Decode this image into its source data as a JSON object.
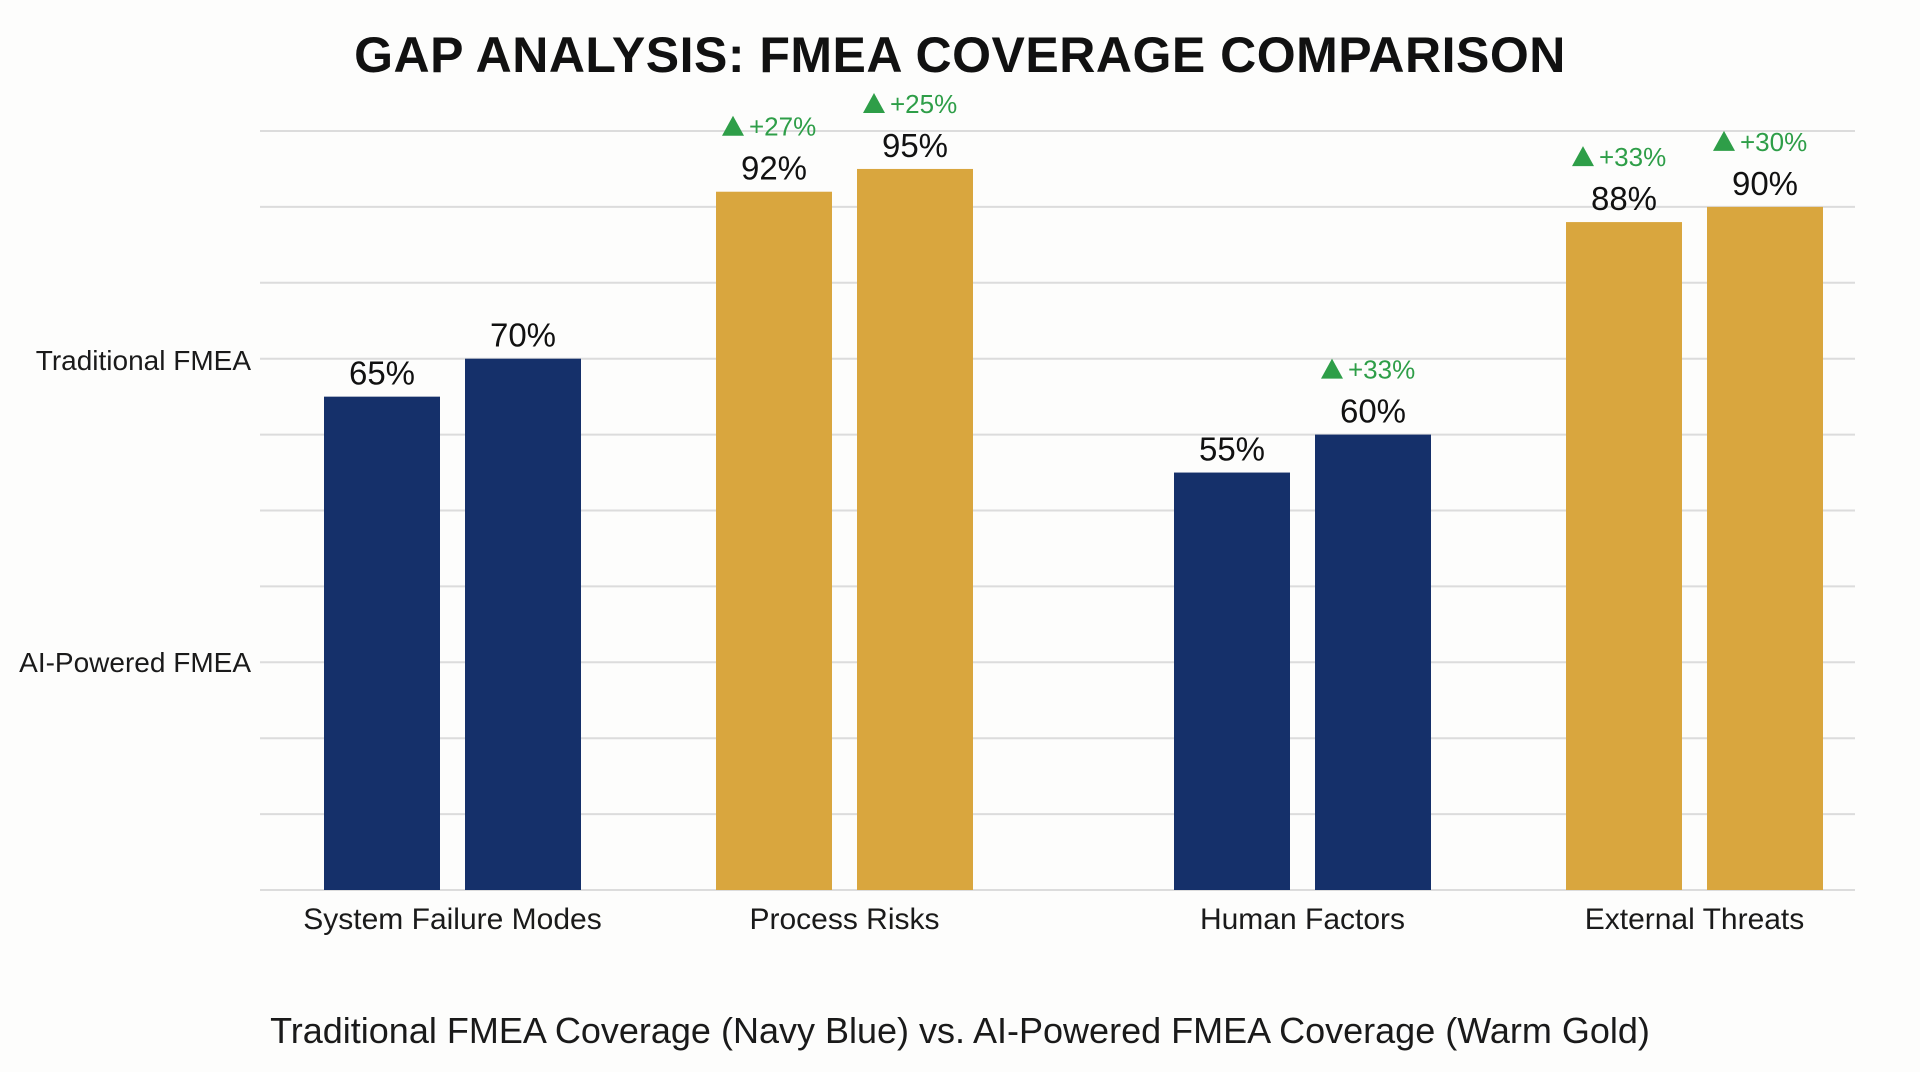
{
  "chart_data": {
    "type": "bar",
    "title": "GAP ANALYSIS: FMEA COVERAGE COMPARISON",
    "caption": "Traditional FMEA Coverage (Navy Blue) vs. AI-Powered FMEA Coverage (Warm Gold)",
    "y_labels": [
      "Traditional FMEA",
      "AI-Powered FMEA"
    ],
    "ylim": [
      0,
      100
    ],
    "grid": true,
    "categories": [
      "System Failure Modes",
      "Process Risks",
      "Human Factors",
      "External Threats"
    ],
    "groups": [
      {
        "values": [
          65,
          70
        ],
        "labels": [
          "65%",
          "70%"
        ],
        "deltas": [
          "",
          ""
        ],
        "color": "#15306a"
      },
      {
        "values": [
          92,
          95
        ],
        "labels": [
          "92%",
          "95%"
        ],
        "deltas": [
          "+27%",
          "+25%"
        ],
        "color": "#d9a63e"
      },
      {
        "values": [
          55,
          60
        ],
        "labels": [
          "55%",
          "60%"
        ],
        "deltas": [
          "",
          "+33%"
        ],
        "color": "#15306a"
      },
      {
        "values": [
          88,
          90
        ],
        "labels": [
          "88%",
          "90%"
        ],
        "deltas": [
          "+33%",
          "+30%"
        ],
        "color": "#d9a63e"
      }
    ],
    "colors": {
      "navy": "#15306a",
      "gold": "#d9a63e",
      "delta": "#2e9e48",
      "grid": "#dcdcdc"
    }
  }
}
